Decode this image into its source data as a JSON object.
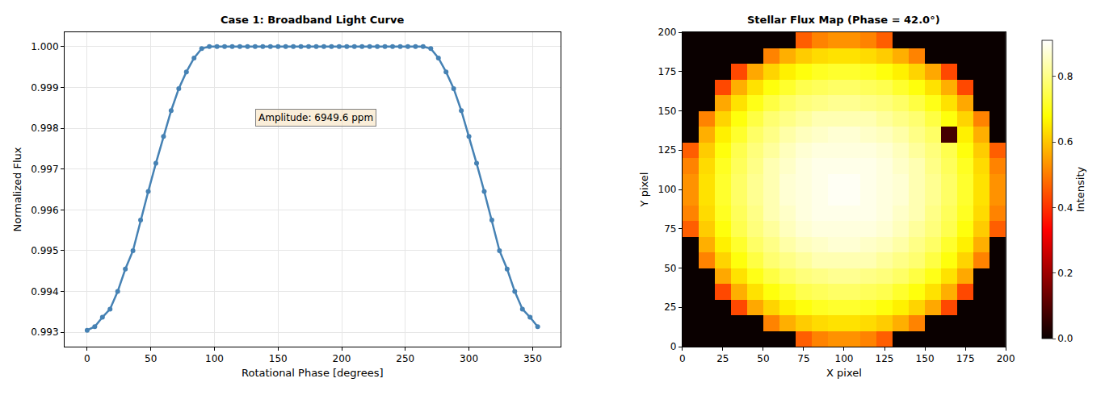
{
  "chart_data": [
    {
      "type": "line",
      "title": "Case 1: Broadband Light Curve",
      "x_label": "Rotational Phase [degrees]",
      "y_label": "Normalized Flux",
      "x": [
        0,
        6,
        12,
        18,
        24,
        30,
        36,
        42,
        48,
        54,
        60,
        66,
        72,
        78,
        84,
        90,
        96,
        102,
        108,
        114,
        120,
        126,
        132,
        138,
        144,
        150,
        156,
        162,
        168,
        174,
        180,
        186,
        192,
        198,
        204,
        210,
        216,
        222,
        228,
        234,
        240,
        246,
        252,
        258,
        264,
        270,
        276,
        282,
        288,
        294,
        300,
        306,
        312,
        318,
        324,
        330,
        336,
        342,
        348,
        354
      ],
      "series": [
        {
          "color": "#4682b4",
          "marker": "circle",
          "line_style": "solid",
          "values": [
            0.99305,
            0.99314,
            0.99337,
            0.99357,
            0.994,
            0.99455,
            0.995,
            0.99575,
            0.99645,
            0.99714,
            0.9978,
            0.99843,
            0.99897,
            0.99938,
            0.99972,
            0.99995,
            1.0,
            1.0,
            1.0,
            1.0,
            1.0,
            1.0,
            1.0,
            1.0,
            1.0,
            1.0,
            1.0,
            1.0,
            1.0,
            1.0,
            1.0,
            1.0,
            1.0,
            1.0,
            1.0,
            1.0,
            1.0,
            1.0,
            1.0,
            1.0,
            1.0,
            1.0,
            1.0,
            1.0,
            1.0,
            0.99995,
            0.99972,
            0.99938,
            0.99897,
            0.99843,
            0.9978,
            0.99714,
            0.99645,
            0.99575,
            0.995,
            0.99455,
            0.994,
            0.99357,
            0.99337,
            0.99314
          ]
        }
      ],
      "xlim": [
        -17.7,
        371.7
      ],
      "ylim": [
        0.99265,
        1.00035
      ],
      "xticks": [
        0,
        50,
        100,
        150,
        200,
        250,
        300,
        350
      ],
      "yticks": [
        0.993,
        0.994,
        0.995,
        0.996,
        0.997,
        0.998,
        0.999,
        {
          "value": 1,
          "label": "1.000"
        }
      ],
      "grid": true,
      "annotations": [
        {
          "text": "Amplitude: 6949.6 ppm",
          "x": 180,
          "y": 0.99825
        }
      ]
    },
    {
      "type": "heatmap",
      "title": "Stellar Flux Map (Phase = 42.0°)",
      "x_label": "X pixel",
      "y_label": "Y pixel",
      "color": "hot",
      "x": [
        5,
        15,
        25,
        35,
        45,
        55,
        65,
        75,
        85,
        95,
        105,
        115,
        125,
        135,
        145,
        155,
        165,
        175,
        185,
        195
      ],
      "y": [
        5,
        15,
        25,
        35,
        45,
        55,
        65,
        75,
        85,
        95,
        105,
        115,
        125,
        135,
        145,
        155,
        165,
        175,
        185,
        195
      ],
      "z": [
        [
          0,
          0,
          0,
          0,
          0,
          0,
          0,
          0.46,
          0.51,
          0.53,
          0.53,
          0.51,
          0.46,
          0,
          0,
          0,
          0,
          0,
          0,
          0
        ],
        [
          0,
          0,
          0,
          0,
          0,
          0.51,
          0.57,
          0.61,
          0.63,
          0.64,
          0.64,
          0.63,
          0.61,
          0.57,
          0.51,
          0,
          0,
          0,
          0,
          0
        ],
        [
          0,
          0,
          0,
          0.43,
          0.56,
          0.62,
          0.66,
          0.69,
          0.71,
          0.72,
          0.72,
          0.71,
          0.69,
          0.66,
          0.62,
          0.56,
          0.43,
          0,
          0,
          0
        ],
        [
          0,
          0,
          0.43,
          0.57,
          0.64,
          0.69,
          0.72,
          0.75,
          0.76,
          0.77,
          0.77,
          0.76,
          0.75,
          0.72,
          0.69,
          0.64,
          0.57,
          0.43,
          0,
          0
        ],
        [
          0,
          0,
          0.56,
          0.64,
          0.7,
          0.74,
          0.77,
          0.79,
          0.8,
          0.81,
          0.81,
          0.8,
          0.79,
          0.77,
          0.74,
          0.7,
          0.64,
          0.56,
          0,
          0
        ],
        [
          0,
          0.51,
          0.62,
          0.69,
          0.74,
          0.78,
          0.8,
          0.82,
          0.84,
          0.84,
          0.84,
          0.84,
          0.82,
          0.8,
          0.78,
          0.74,
          0.69,
          0.62,
          0.51,
          0
        ],
        [
          0,
          0.57,
          0.66,
          0.72,
          0.77,
          0.8,
          0.83,
          0.85,
          0.86,
          0.87,
          0.87,
          0.86,
          0.85,
          0.83,
          0.8,
          0.77,
          0.72,
          0.66,
          0.57,
          0
        ],
        [
          0.46,
          0.61,
          0.69,
          0.75,
          0.79,
          0.82,
          0.85,
          0.87,
          0.88,
          0.88,
          0.88,
          0.88,
          0.87,
          0.85,
          0.82,
          0.79,
          0.75,
          0.69,
          0.61,
          0.46
        ],
        [
          0.51,
          0.63,
          0.71,
          0.76,
          0.8,
          0.84,
          0.86,
          0.88,
          0.89,
          0.89,
          0.89,
          0.89,
          0.88,
          0.86,
          0.84,
          0.8,
          0.76,
          0.71,
          0.63,
          0.51
        ],
        [
          0.53,
          0.64,
          0.72,
          0.77,
          0.81,
          0.84,
          0.87,
          0.88,
          0.89,
          0.9,
          0.9,
          0.89,
          0.88,
          0.87,
          0.84,
          0.81,
          0.77,
          0.72,
          0.64,
          0.53
        ],
        [
          0.53,
          0.64,
          0.72,
          0.77,
          0.81,
          0.84,
          0.87,
          0.88,
          0.89,
          0.9,
          0.9,
          0.89,
          0.88,
          0.87,
          0.84,
          0.81,
          0.77,
          0.72,
          0.64,
          0.53
        ],
        [
          0.51,
          0.63,
          0.71,
          0.76,
          0.8,
          0.84,
          0.86,
          0.88,
          0.89,
          0.89,
          0.89,
          0.89,
          0.88,
          0.86,
          0.84,
          0.8,
          0.76,
          0.71,
          0.63,
          0.51
        ],
        [
          0.46,
          0.61,
          0.69,
          0.75,
          0.79,
          0.82,
          0.85,
          0.87,
          0.88,
          0.88,
          0.88,
          0.88,
          0.87,
          0.85,
          0.82,
          0.79,
          0.75,
          0.69,
          0.61,
          0.46
        ],
        [
          0,
          0.57,
          0.66,
          0.72,
          0.77,
          0.8,
          0.83,
          0.85,
          0.86,
          0.87,
          0.87,
          0.86,
          0.85,
          0.83,
          0.8,
          0.77,
          0.08,
          0.66,
          0.57,
          0
        ],
        [
          0,
          0.51,
          0.62,
          0.69,
          0.74,
          0.78,
          0.8,
          0.82,
          0.84,
          0.84,
          0.84,
          0.84,
          0.82,
          0.8,
          0.78,
          0.74,
          0.69,
          0.62,
          0.51,
          0
        ],
        [
          0,
          0,
          0.56,
          0.64,
          0.7,
          0.74,
          0.77,
          0.79,
          0.8,
          0.81,
          0.81,
          0.8,
          0.79,
          0.77,
          0.74,
          0.7,
          0.64,
          0.56,
          0,
          0
        ],
        [
          0,
          0,
          0.43,
          0.57,
          0.64,
          0.69,
          0.72,
          0.75,
          0.76,
          0.77,
          0.77,
          0.76,
          0.75,
          0.72,
          0.69,
          0.64,
          0.57,
          0.43,
          0,
          0
        ],
        [
          0,
          0,
          0,
          0.43,
          0.56,
          0.62,
          0.66,
          0.69,
          0.71,
          0.72,
          0.72,
          0.71,
          0.69,
          0.66,
          0.62,
          0.56,
          0.43,
          0,
          0,
          0
        ],
        [
          0,
          0,
          0,
          0,
          0,
          0.51,
          0.57,
          0.61,
          0.63,
          0.64,
          0.64,
          0.63,
          0.61,
          0.57,
          0.51,
          0,
          0,
          0,
          0,
          0
        ],
        [
          0,
          0,
          0,
          0,
          0,
          0,
          0,
          0.46,
          0.51,
          0.53,
          0.53,
          0.51,
          0.46,
          0,
          0,
          0,
          0,
          0,
          0,
          0
        ]
      ],
      "xlim": [
        0,
        200
      ],
      "ylim": [
        0,
        200
      ],
      "xticks": [
        0,
        25,
        50,
        75,
        100,
        125,
        150,
        175,
        200
      ],
      "yticks": [
        0,
        25,
        50,
        75,
        100,
        125,
        150,
        175,
        200
      ],
      "grid": false,
      "colorbar": {
        "label": "Intensity",
        "range": [
          0,
          0.91
        ],
        "ticks": [
          {
            "value": 0,
            "label": "0.0"
          },
          0.2,
          0.4,
          0.6,
          0.8
        ]
      }
    }
  ]
}
